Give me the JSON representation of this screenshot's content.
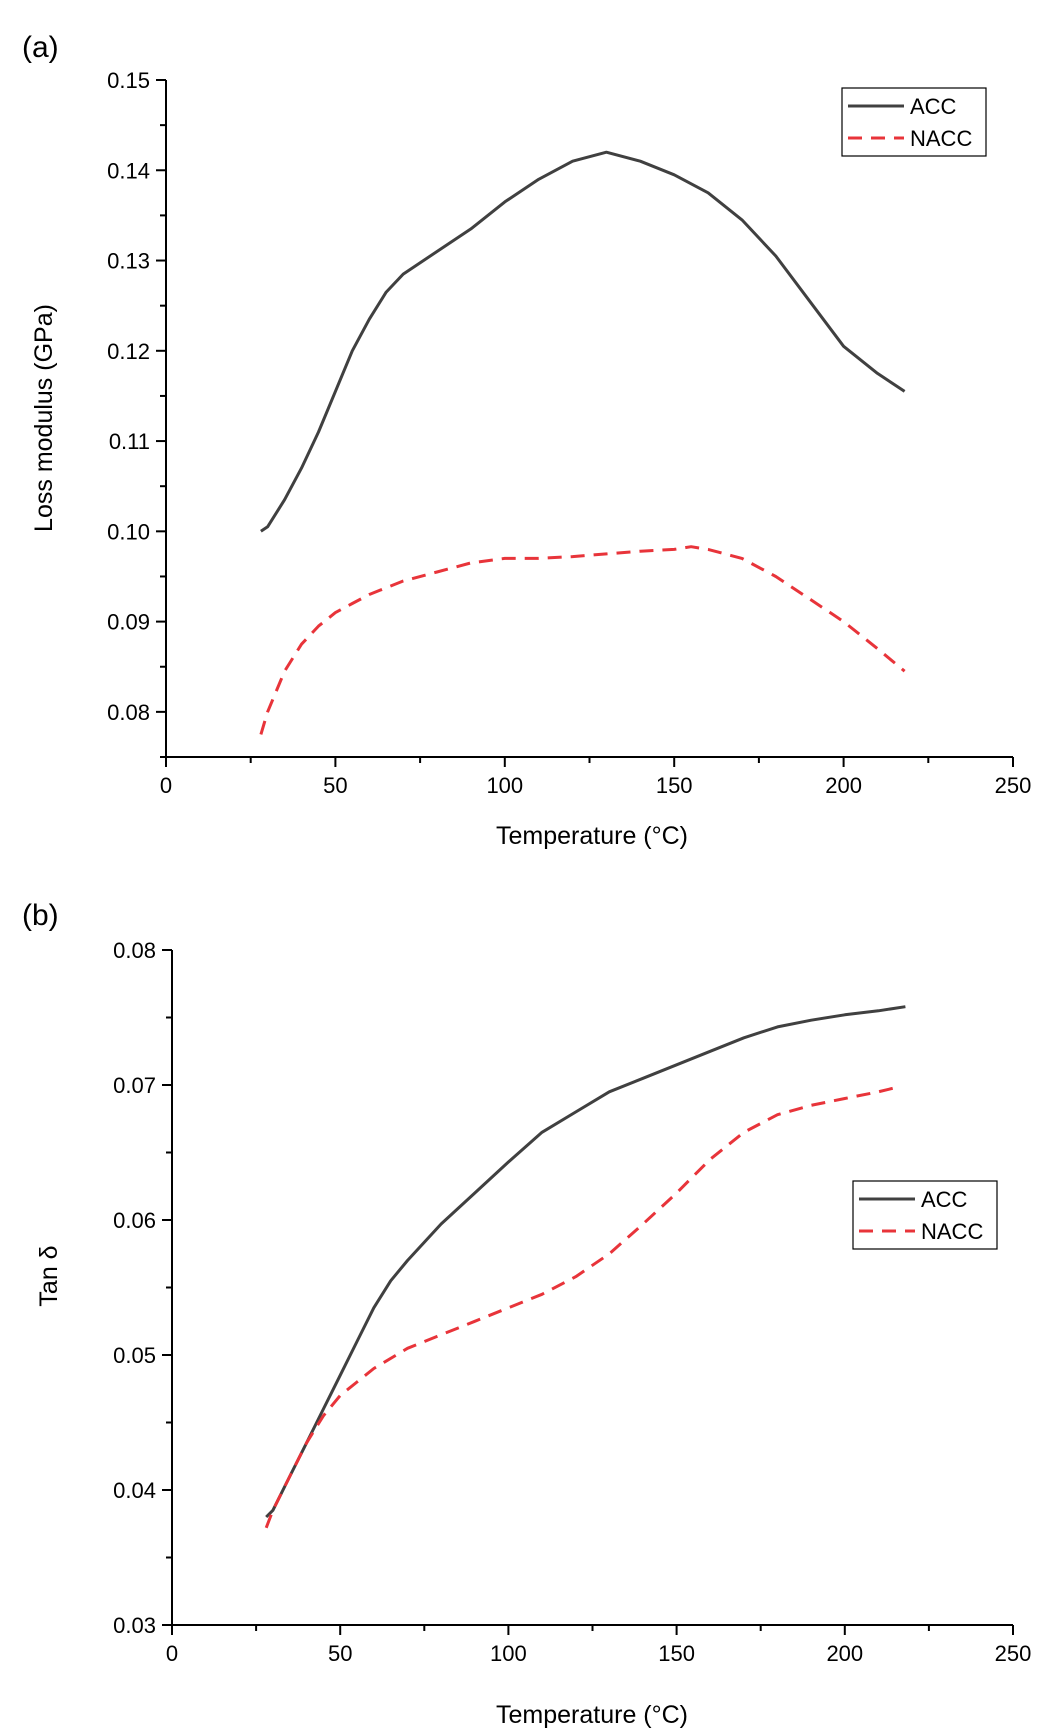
{
  "chart_data": [
    {
      "panel": "(a)",
      "type": "line",
      "xlabel": "Temperature (°C)",
      "ylabel": "Loss modulus (GPa)",
      "xlim": [
        0,
        250
      ],
      "ylim": [
        0.075,
        0.15
      ],
      "xticks": [
        0,
        50,
        100,
        150,
        200,
        250
      ],
      "xtick_labels": [
        "0",
        "50",
        "100",
        "150",
        "200",
        "250"
      ],
      "yticks": [
        0.08,
        0.09,
        0.1,
        0.11,
        0.12,
        0.13,
        0.14,
        0.15
      ],
      "ytick_labels": [
        "0.08",
        "0.09",
        "0.10",
        "0.11",
        "0.12",
        "0.13",
        "0.14",
        "0.15"
      ],
      "legend_position": "top-right",
      "grid": false,
      "series": [
        {
          "name": "ACC",
          "color": "#404040",
          "style": "solid",
          "x": [
            28,
            30,
            35,
            40,
            45,
            50,
            55,
            60,
            65,
            70,
            80,
            90,
            100,
            110,
            120,
            130,
            140,
            150,
            160,
            170,
            180,
            190,
            200,
            210,
            218
          ],
          "y": [
            0.1,
            0.1005,
            0.1035,
            0.107,
            0.111,
            0.1155,
            0.12,
            0.1235,
            0.1265,
            0.1285,
            0.131,
            0.1335,
            0.1365,
            0.139,
            0.141,
            0.142,
            0.141,
            0.1395,
            0.1375,
            0.1345,
            0.1305,
            0.1255,
            0.1205,
            0.1175,
            0.1155
          ]
        },
        {
          "name": "NACC",
          "color": "#e8343a",
          "style": "dashed",
          "x": [
            28,
            30,
            35,
            40,
            45,
            50,
            55,
            60,
            70,
            80,
            90,
            100,
            110,
            120,
            130,
            140,
            150,
            155,
            160,
            170,
            180,
            190,
            200,
            210,
            218
          ],
          "y": [
            0.0775,
            0.08,
            0.0845,
            0.0875,
            0.0895,
            0.091,
            0.092,
            0.093,
            0.0945,
            0.0955,
            0.0965,
            0.097,
            0.097,
            0.0972,
            0.0975,
            0.0978,
            0.098,
            0.0983,
            0.098,
            0.097,
            0.095,
            0.0925,
            0.09,
            0.087,
            0.0845
          ]
        }
      ]
    },
    {
      "panel": "(b)",
      "type": "line",
      "xlabel": "Temperature (°C)",
      "ylabel": "Tan δ",
      "xlim": [
        0,
        250
      ],
      "ylim": [
        0.03,
        0.08
      ],
      "xticks": [
        0,
        50,
        100,
        150,
        200,
        250
      ],
      "xtick_labels": [
        "0",
        "50",
        "100",
        "150",
        "200",
        "250"
      ],
      "yticks": [
        0.03,
        0.04,
        0.05,
        0.06,
        0.07,
        0.08
      ],
      "ytick_labels": [
        "0.03",
        "0.04",
        "0.05",
        "0.06",
        "0.07",
        "0.08"
      ],
      "legend_position": "middle-right",
      "grid": false,
      "series": [
        {
          "name": "ACC",
          "color": "#404040",
          "style": "solid",
          "x": [
            28,
            30,
            35,
            40,
            45,
            50,
            55,
            60,
            65,
            70,
            80,
            90,
            100,
            110,
            120,
            130,
            140,
            150,
            160,
            170,
            180,
            190,
            200,
            210,
            218
          ],
          "y": [
            0.038,
            0.0385,
            0.041,
            0.0435,
            0.046,
            0.0485,
            0.051,
            0.0535,
            0.0555,
            0.057,
            0.0597,
            0.062,
            0.0643,
            0.0665,
            0.068,
            0.0695,
            0.0705,
            0.0715,
            0.0725,
            0.0735,
            0.0743,
            0.0748,
            0.0752,
            0.0755,
            0.0758
          ]
        },
        {
          "name": "NACC",
          "color": "#e8343a",
          "style": "dashed",
          "x": [
            28,
            30,
            35,
            40,
            45,
            50,
            55,
            60,
            70,
            80,
            90,
            100,
            110,
            120,
            130,
            140,
            150,
            160,
            170,
            180,
            190,
            200,
            210,
            215
          ],
          "y": [
            0.0372,
            0.0385,
            0.041,
            0.0435,
            0.0455,
            0.047,
            0.048,
            0.049,
            0.0505,
            0.0515,
            0.0525,
            0.0535,
            0.0545,
            0.0558,
            0.0575,
            0.0597,
            0.062,
            0.0645,
            0.0665,
            0.0678,
            0.0685,
            0.069,
            0.0695,
            0.0698
          ]
        }
      ]
    }
  ]
}
